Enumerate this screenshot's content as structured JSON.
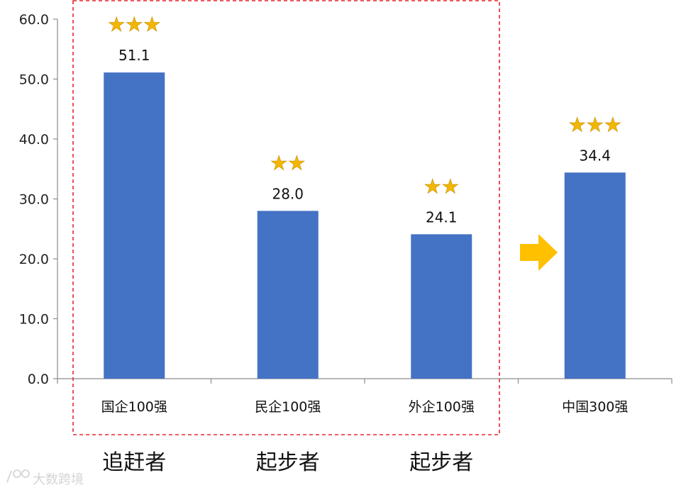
{
  "chart_data": {
    "type": "bar",
    "categories": [
      "国企100强",
      "民企100强",
      "外企100强",
      "中国300强"
    ],
    "values": [
      51.1,
      28.0,
      24.1,
      34.4
    ],
    "value_labels": [
      "51.1",
      "28.0",
      "24.1",
      "34.4"
    ],
    "stars": [
      "★★★",
      "★★",
      "★★",
      "★★★"
    ],
    "ylim": [
      0,
      60
    ],
    "y_ticks": [
      "0.0",
      "10.0",
      "20.0",
      "30.0",
      "40.0",
      "50.0",
      "60.0"
    ],
    "group_labels": [
      "追赶者",
      "起步者",
      "起步者"
    ],
    "bar_color": "#4472c4",
    "highlight_box_color": "#e8262d",
    "arrow_color": "#ffc000",
    "star_color": "#f2b705",
    "grid": false,
    "legend": "none"
  },
  "watermark": {
    "text": "大数跨境"
  }
}
